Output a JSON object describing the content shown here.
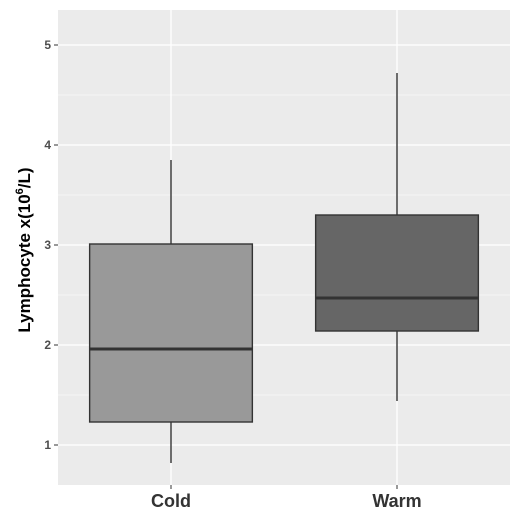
{
  "chart_data": {
    "type": "boxplot",
    "title": "",
    "xlabel": "",
    "ylabel": {
      "prefix": "Lymphocyte x(10",
      "superscript": "6",
      "suffix": "/L)"
    },
    "ylim": [
      0.6,
      5.35
    ],
    "yticks": [
      1,
      2,
      3,
      4,
      5
    ],
    "grid": true,
    "legend": "none",
    "categories": [
      "Cold",
      "Warm"
    ],
    "boxes": [
      {
        "name": "Cold",
        "whisker_low": 0.82,
        "q1": 1.23,
        "median": 1.96,
        "q3": 3.01,
        "whisker_high": 3.85,
        "color": "#999999"
      },
      {
        "name": "Warm",
        "whisker_low": 1.44,
        "q1": 2.14,
        "median": 2.47,
        "q3": 3.3,
        "whisker_high": 4.72,
        "color": "#666666"
      }
    ],
    "colors": {
      "panel": "#ebebeb",
      "grid": "#ffffff",
      "outline": "#333333"
    }
  }
}
